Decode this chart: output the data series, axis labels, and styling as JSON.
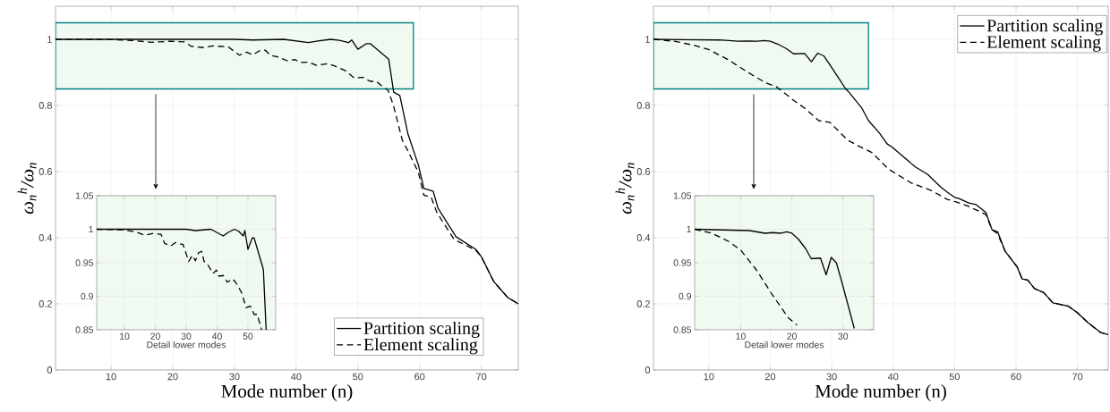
{
  "chart_data": [
    {
      "type": "line",
      "xlabel": "Mode number (n)",
      "ylabel": "ω$_{n}$$^{h}$/ω$_{n}$",
      "xlim": [
        1,
        76
      ],
      "ylim": [
        0,
        1.1
      ],
      "xticks": [
        10,
        20,
        30,
        40,
        50,
        60,
        70
      ],
      "yticks": [
        0,
        0.2,
        0.4,
        0.6,
        0.8,
        1
      ],
      "grid": true,
      "legend": "bottom right",
      "series": [
        {
          "name": "Partition scaling",
          "color": "#000000",
          "line_style": "solid",
          "x": [
            1,
            10,
            20,
            30,
            33,
            38,
            42,
            43.5,
            45.6,
            47,
            48.5,
            49,
            50,
            51.4,
            52,
            55,
            55.8,
            56.8,
            58.1,
            59.8,
            60.7,
            62.2,
            63,
            65.9,
            69.1,
            70,
            72,
            74.3,
            76
          ],
          "values": [
            1.0,
            1.0,
            1.0,
            1.0,
            0.998,
            1.0,
            0.99,
            0.995,
            1.0,
            0.997,
            0.99,
            0.998,
            0.97,
            0.987,
            0.987,
            0.94,
            0.84,
            0.83,
            0.715,
            0.62,
            0.549,
            0.541,
            0.489,
            0.403,
            0.365,
            0.343,
            0.268,
            0.219,
            0.2
          ]
        },
        {
          "name": "Element scaling",
          "color": "#000000",
          "line_style": "dashed",
          "x": [
            1,
            10,
            13.7,
            16.6,
            19.5,
            21.9,
            23,
            25,
            26.5,
            29,
            30.8,
            32,
            33,
            34,
            35,
            35.8,
            37,
            38.7,
            39.8,
            40.6,
            42,
            43.3,
            45,
            46,
            48,
            49.4,
            50.8,
            52,
            53,
            54,
            54.9,
            55.8,
            57.2,
            58.1,
            59.8,
            60.7,
            61.9,
            62.8,
            65.6,
            69.1,
            70,
            72,
            74.3,
            76
          ],
          "values": [
            1.0,
            0.999,
            0.996,
            0.991,
            0.994,
            0.992,
            0.979,
            0.975,
            0.98,
            0.977,
            0.952,
            0.961,
            0.953,
            0.965,
            0.967,
            0.952,
            0.947,
            0.934,
            0.939,
            0.93,
            0.931,
            0.921,
            0.926,
            0.921,
            0.905,
            0.883,
            0.885,
            0.873,
            0.873,
            0.857,
            0.846,
            0.798,
            0.695,
            0.663,
            0.598,
            0.529,
            0.522,
            0.476,
            0.395,
            0.362,
            0.343,
            0.268,
            0.219,
            0.2
          ]
        }
      ]
    },
    {
      "type": "line",
      "xlabel": "Detail lower modes",
      "xlim": [
        1,
        59
      ],
      "ylim": [
        0.85,
        1.05
      ],
      "xticks": [
        10,
        20,
        30,
        40,
        50
      ],
      "yticks": [
        0.85,
        0.9,
        0.95,
        1,
        1.05
      ],
      "grid": true,
      "series": [
        {
          "color": "#000000",
          "line_style": "solid",
          "x": [
            1,
            10,
            20,
            30,
            33,
            38,
            42,
            43.5,
            45.6,
            47,
            48.5,
            49,
            50,
            51.4,
            52,
            55,
            55.9
          ],
          "values": [
            1.0,
            1.0,
            1.0,
            1.0,
            0.998,
            1.0,
            0.99,
            0.995,
            1.0,
            0.997,
            0.99,
            0.998,
            0.97,
            0.987,
            0.987,
            0.94,
            0.85
          ]
        },
        {
          "color": "#000000",
          "line_style": "dashed",
          "x": [
            1,
            10,
            13.7,
            16.6,
            19.5,
            21.9,
            23,
            25,
            26.5,
            29,
            30.8,
            32,
            33,
            34,
            35,
            35.8,
            37,
            38.7,
            39.8,
            40.6,
            42,
            43.3,
            45,
            46,
            48,
            49.4,
            50.8,
            52,
            53,
            54,
            54.4
          ],
          "values": [
            1.0,
            0.999,
            0.996,
            0.991,
            0.994,
            0.992,
            0.979,
            0.975,
            0.98,
            0.977,
            0.952,
            0.961,
            0.953,
            0.965,
            0.967,
            0.952,
            0.947,
            0.934,
            0.939,
            0.93,
            0.931,
            0.921,
            0.926,
            0.921,
            0.905,
            0.883,
            0.885,
            0.873,
            0.873,
            0.857,
            0.85
          ]
        }
      ]
    },
    {
      "type": "line",
      "xlabel": "Mode number (n)",
      "ylabel": "ω$_{n}$$^{h}$/ω$_{n}$",
      "xlim": [
        1,
        75
      ],
      "ylim": [
        0,
        1.1
      ],
      "xticks": [
        10,
        20,
        30,
        40,
        50,
        60,
        70
      ],
      "yticks": [
        0,
        0.2,
        0.4,
        0.6,
        0.8,
        1
      ],
      "grid": true,
      "legend": "top right",
      "series": [
        {
          "name": "Partition scaling",
          "color": "#000000",
          "line_style": "solid",
          "x": [
            1,
            11.7,
            14.8,
            16.2,
            17.9,
            19,
            20,
            21.3,
            22.7,
            23.8,
            25.6,
            26.7,
            27.7,
            28.7,
            29.6,
            31.3,
            32.2,
            32.9,
            34.9,
            36,
            37.8,
            39,
            39.9,
            43.6,
            45.6,
            46.2,
            47.7,
            48.8,
            50,
            50.8,
            52.3,
            53.5,
            55.1,
            56.1,
            57,
            58.2,
            60.2,
            61,
            61.9,
            63,
            64.5,
            66,
            68.5,
            70,
            71.7,
            73.8,
            75
          ],
          "values": [
            1.0,
            0.998,
            0.994,
            0.995,
            0.994,
            0.996,
            0.994,
            0.985,
            0.971,
            0.956,
            0.957,
            0.932,
            0.958,
            0.95,
            0.926,
            0.878,
            0.852,
            0.838,
            0.792,
            0.754,
            0.716,
            0.684,
            0.673,
            0.614,
            0.592,
            0.581,
            0.554,
            0.538,
            0.522,
            0.518,
            0.505,
            0.5,
            0.476,
            0.424,
            0.418,
            0.36,
            0.311,
            0.275,
            0.272,
            0.246,
            0.234,
            0.203,
            0.193,
            0.173,
            0.143,
            0.113,
            0.107
          ]
        },
        {
          "name": "Element scaling",
          "color": "#000000",
          "line_style": "dashed",
          "x": [
            1,
            4.4,
            7.6,
            10,
            13.1,
            16.2,
            19.3,
            21,
            23.9,
            25.6,
            27.9,
            29.7,
            32.6,
            34.3,
            36.6,
            39.2,
            43,
            46.2,
            48.8,
            50,
            52,
            54,
            55.1,
            56.1,
            57,
            58.2,
            60.2,
            61,
            61.9,
            63,
            64.5,
            66,
            68.5,
            70,
            71.7,
            73.8,
            75
          ],
          "values": [
            1.0,
            0.994,
            0.982,
            0.969,
            0.939,
            0.902,
            0.868,
            0.857,
            0.814,
            0.792,
            0.754,
            0.749,
            0.695,
            0.678,
            0.657,
            0.608,
            0.565,
            0.543,
            0.516,
            0.51,
            0.497,
            0.48,
            0.47,
            0.424,
            0.412,
            0.36,
            0.311,
            0.275,
            0.272,
            0.246,
            0.234,
            0.203,
            0.193,
            0.173,
            0.143,
            0.113,
            0.107
          ]
        }
      ]
    },
    {
      "type": "line",
      "xlabel": "Detail lower modes",
      "xlim": [
        1,
        36
      ],
      "ylim": [
        0.85,
        1.05
      ],
      "xticks": [
        10,
        20,
        30
      ],
      "yticks": [
        0.85,
        0.9,
        0.95,
        1,
        1.05
      ],
      "grid": true,
      "series": [
        {
          "color": "#000000",
          "line_style": "solid",
          "x": [
            1,
            11.7,
            14.8,
            16.2,
            17.9,
            19,
            20,
            21.3,
            22.7,
            23.8,
            25.6,
            26.7,
            27.7,
            28.7,
            29.6,
            31.3,
            32.2
          ],
          "values": [
            1.0,
            0.998,
            0.994,
            0.995,
            0.994,
            0.996,
            0.994,
            0.985,
            0.971,
            0.956,
            0.957,
            0.932,
            0.958,
            0.95,
            0.926,
            0.878,
            0.852
          ]
        },
        {
          "color": "#000000",
          "line_style": "dashed",
          "x": [
            1,
            4.4,
            7.6,
            10,
            13.1,
            16.2,
            19.3,
            21
          ],
          "values": [
            1.0,
            0.994,
            0.982,
            0.969,
            0.939,
            0.902,
            0.868,
            0.857
          ]
        }
      ]
    }
  ]
}
